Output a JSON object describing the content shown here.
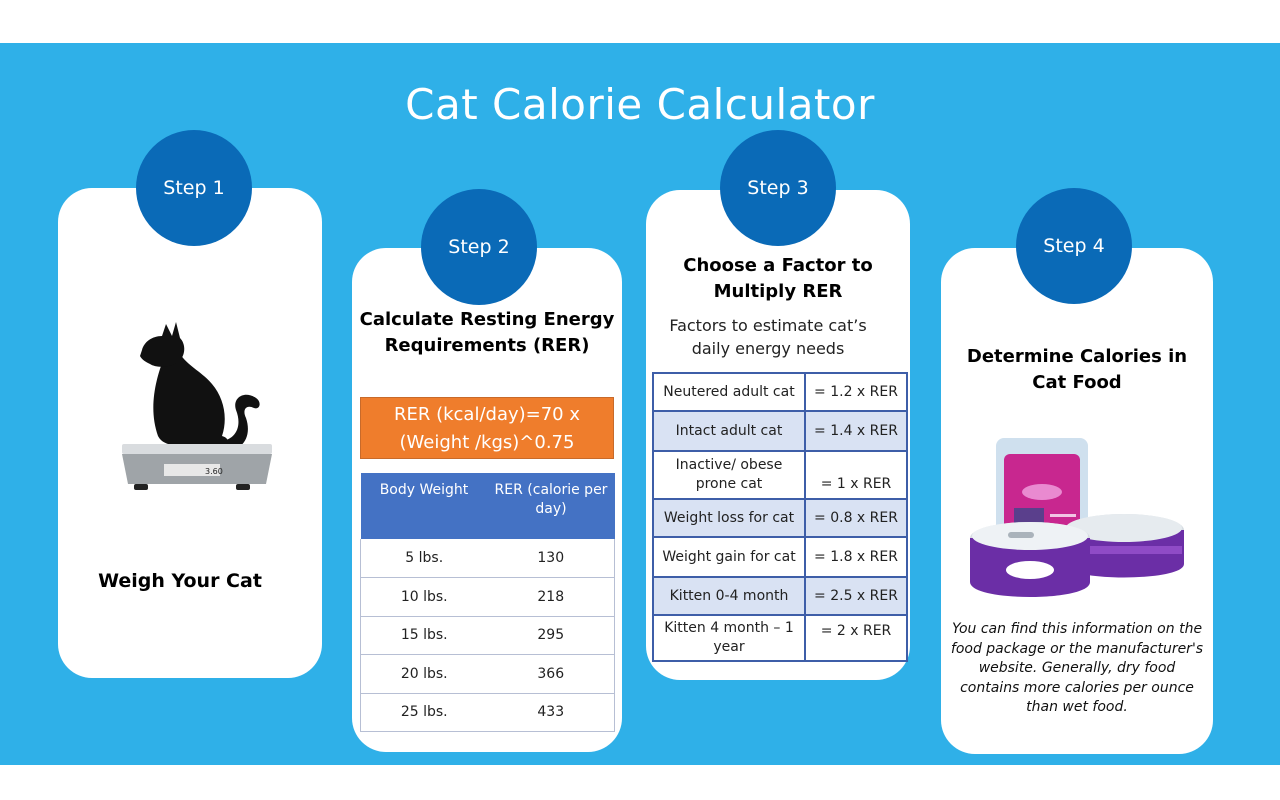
{
  "title": "Cat Calorie Calculator",
  "colors": {
    "background": "#2fb0e8",
    "circle": "#0a6ab7",
    "formula": "#ef7d2c",
    "table_header": "#4472c4",
    "table_alt": "#d9e2f3"
  },
  "step1": {
    "badge": "Step 1",
    "caption": "Weigh Your Cat",
    "scale_reading": "3.60",
    "icons": [
      "cat-silhouette-icon",
      "scale-icon"
    ]
  },
  "step2": {
    "badge": "Step 2",
    "heading_line1": "Calculate Resting Energy",
    "heading_line2": "Requirements (RER)",
    "formula_line1": "RER (kcal/day)=70 x",
    "formula_line2": "(Weight /kgs)^0.75",
    "table": {
      "headers": [
        "Body Weight",
        "RER (calorie per day)"
      ],
      "rows": [
        [
          "5 lbs.",
          "130"
        ],
        [
          "10 lbs.",
          "218"
        ],
        [
          "15 lbs.",
          "295"
        ],
        [
          "20 lbs.",
          "366"
        ],
        [
          "25 lbs.",
          "433"
        ]
      ]
    }
  },
  "step3": {
    "badge": "Step 3",
    "heading_line1": "Choose a Factor to",
    "heading_line2": "Multiply RER",
    "sub_line1": "Factors to estimate cat’s",
    "sub_line2": "daily energy needs",
    "table": [
      [
        "Neutered adult cat",
        "= 1.2 x RER"
      ],
      [
        "Intact adult cat",
        "= 1.4 x RER"
      ],
      [
        "Inactive/ obese prone cat",
        "= 1 x RER"
      ],
      [
        "Weight loss for cat",
        "= 0.8 x RER"
      ],
      [
        "Weight gain for cat",
        "= 1.8 x RER"
      ],
      [
        "Kitten 0-4 month",
        "= 2.5 x RER"
      ],
      [
        "Kitten 4 month – 1 year",
        "= 2 x RER"
      ]
    ]
  },
  "step4": {
    "badge": "Step 4",
    "heading_line1": "Determine Calories in",
    "heading_line2": "Cat Food",
    "note": "You can find this information on the food package or the manufacturer's website. Generally, dry food contains more calories per ounce than wet food.",
    "icons": [
      "cat-food-pouch-icon",
      "cat-food-can-icon"
    ]
  }
}
